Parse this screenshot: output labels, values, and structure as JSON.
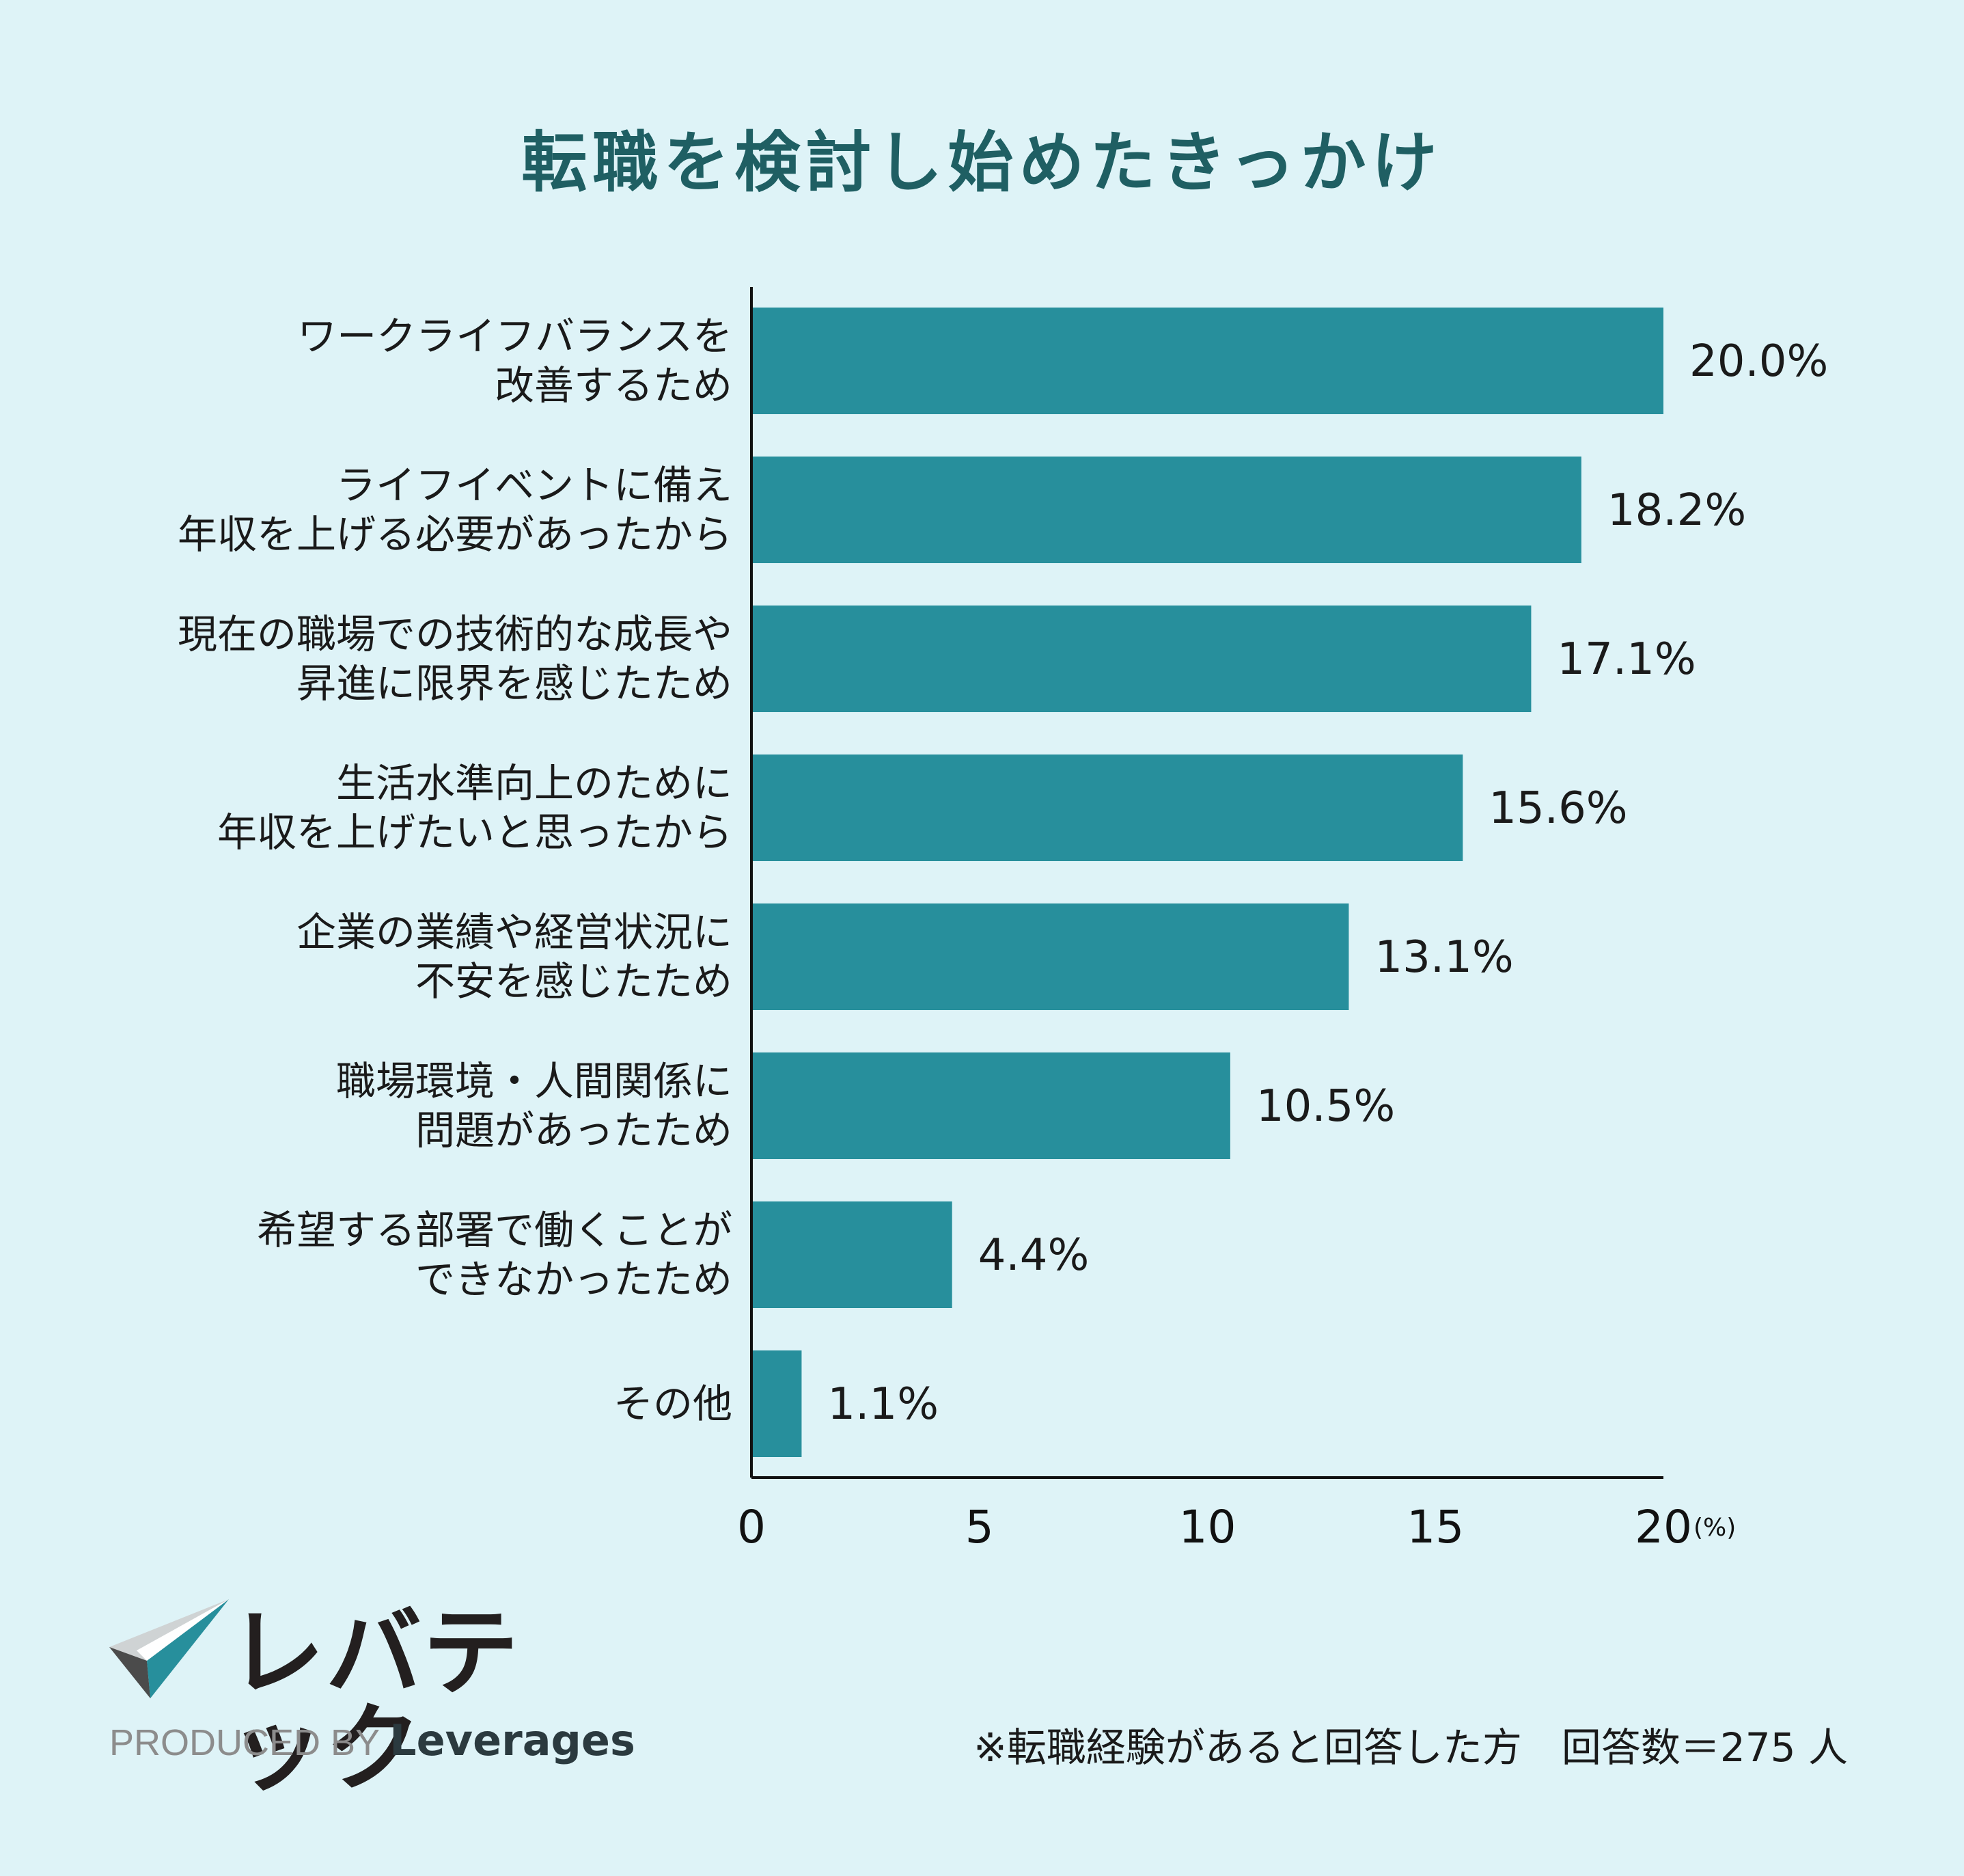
{
  "title": "転職を検討し始めたきっかけ",
  "chart_data": {
    "type": "bar",
    "orientation": "horizontal",
    "title": "転職を検討し始めたきっかけ",
    "categories": [
      [
        "ワークライフバランスを",
        "改善するため"
      ],
      [
        "ライフイベントに備え",
        "年収を上げる必要があったから"
      ],
      [
        "現在の職場での技術的な成長や",
        "昇進に限界を感じたため"
      ],
      [
        "生活水準向上のために",
        "年収を上げたいと思ったから"
      ],
      [
        "企業の業績や経営状況に",
        "不安を感じたため"
      ],
      [
        "職場環境・人間関係に",
        "問題があったため"
      ],
      [
        "希望する部署で働くことが",
        "できなかったため"
      ],
      [
        "その他"
      ]
    ],
    "values": [
      20.0,
      18.2,
      17.1,
      15.6,
      13.1,
      10.5,
      4.4,
      1.1
    ],
    "value_labels": [
      "20.0%",
      "18.2%",
      "17.1%",
      "15.6%",
      "13.1%",
      "10.5%",
      "4.4%",
      "1.1%"
    ],
    "xlim": [
      0,
      20
    ],
    "x_ticks": [
      "0",
      "5",
      "10",
      "15",
      "20"
    ],
    "x_unit": "(%)",
    "bar_color": "#278f9c",
    "grid": false
  },
  "logo": {
    "name": "レバテック",
    "produced_by": "PRODUCED BY",
    "brand": "Leverages"
  },
  "footnote": "※転職経験があると回答した方　回答数＝275 人"
}
